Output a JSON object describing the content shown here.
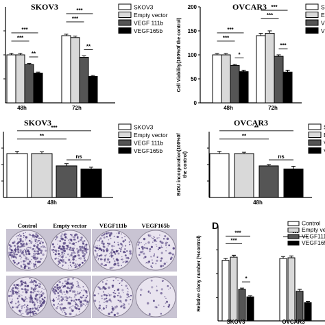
{
  "chart_data": [
    {
      "type": "bar",
      "title": "SKOV3",
      "ylabel": "",
      "categories": [
        "48h",
        "72h"
      ],
      "legend_position": "top-right",
      "ylim": [
        0,
        200
      ],
      "series": [
        {
          "name": "SKOV3",
          "color": "#ffffff",
          "values": [
            100,
            140
          ],
          "errors": [
            3,
            3
          ]
        },
        {
          "name": "Empty vector",
          "color": "#d9d9d9",
          "values": [
            100,
            136
          ],
          "errors": [
            3,
            3
          ]
        },
        {
          "name": "VEGF 111b",
          "color": "#555555",
          "values": [
            80,
            95
          ],
          "errors": [
            2,
            3
          ]
        },
        {
          "name": "VEGF165b",
          "color": "#000000",
          "values": [
            62,
            55
          ],
          "errors": [
            2,
            2
          ]
        }
      ],
      "brackets": [
        {
          "group": 0,
          "from": 0,
          "to": 3,
          "label": "***"
        },
        {
          "group": 0,
          "from": 0,
          "to": 2,
          "label": "***"
        },
        {
          "group": 0,
          "from": 2,
          "to": 3,
          "label": "**"
        },
        {
          "group": 1,
          "from": 0,
          "to": 3,
          "label": "***"
        },
        {
          "group": 1,
          "from": 0,
          "to": 2,
          "label": "***"
        },
        {
          "group": 1,
          "from": 2,
          "to": 3,
          "label": "**"
        }
      ]
    },
    {
      "type": "bar",
      "title": "OVCAR3",
      "ylabel": "Cell Viability(100%0f the control)",
      "categories": [
        "48h",
        "72h"
      ],
      "legend_position": "top-right",
      "ylim": [
        0,
        200
      ],
      "series": [
        {
          "name": "SKOV3",
          "color": "#ffffff",
          "values": [
            100,
            140
          ],
          "errors": [
            3,
            5
          ]
        },
        {
          "name": "Empty vector",
          "color": "#d9d9d9",
          "values": [
            100,
            145
          ],
          "errors": [
            3,
            5
          ]
        },
        {
          "name": "VEGF 111b",
          "color": "#555555",
          "values": [
            78,
            97
          ],
          "errors": [
            2,
            3
          ]
        },
        {
          "name": "VEGF165b",
          "color": "#000000",
          "values": [
            65,
            64
          ],
          "errors": [
            3,
            4
          ]
        }
      ],
      "legend_visible": [
        "S",
        "E",
        "V",
        "V"
      ],
      "brackets": [
        {
          "group": 0,
          "from": 0,
          "to": 3,
          "label": "***"
        },
        {
          "group": 0,
          "from": 0,
          "to": 2,
          "label": "***"
        },
        {
          "group": 0,
          "from": 2,
          "to": 3,
          "label": "*"
        },
        {
          "group": 1,
          "from": 0,
          "to": 3,
          "label": "***"
        },
        {
          "group": 1,
          "from": 0,
          "to": 2,
          "label": "***"
        },
        {
          "group": 1,
          "from": 2,
          "to": 3,
          "label": "***"
        }
      ]
    },
    {
      "type": "bar",
      "title": "SKOV3",
      "ylabel": "",
      "categories": [
        "48h"
      ],
      "legend_position": "top-right",
      "ylim": [
        0,
        1.5
      ],
      "series": [
        {
          "name": "SKOV3",
          "color": "#ffffff",
          "values": [
            1.0
          ],
          "errors": [
            0.05
          ]
        },
        {
          "name": "Empty vector",
          "color": "#d9d9d9",
          "values": [
            1.0
          ],
          "errors": [
            0.04
          ]
        },
        {
          "name": "VEGF 111b",
          "color": "#555555",
          "values": [
            0.72
          ],
          "errors": [
            0.05
          ]
        },
        {
          "name": "VEGF165b",
          "color": "#000000",
          "values": [
            0.65
          ],
          "errors": [
            0.04
          ]
        }
      ],
      "brackets": [
        {
          "group": 0,
          "from": 0,
          "to": 3,
          "label": "***"
        },
        {
          "group": 0,
          "from": 0,
          "to": 2,
          "label": "**"
        },
        {
          "group": 0,
          "from": 2,
          "to": 3,
          "label": "ns"
        }
      ]
    },
    {
      "type": "bar",
      "title": "OVCAR3",
      "ylabel": "BrDU incorporation(100%0f the control)",
      "categories": [
        "48h"
      ],
      "legend_position": "top-right",
      "ylim": [
        0,
        1.5
      ],
      "series": [
        {
          "name": "SKOV3",
          "color": "#ffffff",
          "values": [
            1.0
          ],
          "errors": [
            0.05
          ]
        },
        {
          "name": "Empty vector",
          "color": "#d9d9d9",
          "values": [
            1.0
          ],
          "errors": [
            0.03
          ]
        },
        {
          "name": "VEGF 111b",
          "color": "#555555",
          "values": [
            0.72
          ],
          "errors": [
            0.03
          ]
        },
        {
          "name": "VEGF165b",
          "color": "#000000",
          "values": [
            0.65
          ],
          "errors": [
            0.06
          ]
        }
      ],
      "legend_visible": [
        "S",
        "E",
        "V",
        "V"
      ],
      "brackets": [
        {
          "group": 0,
          "from": 0,
          "to": 3,
          "label": "**"
        },
        {
          "group": 0,
          "from": 0,
          "to": 2,
          "label": "**"
        },
        {
          "group": 0,
          "from": 2,
          "to": 3,
          "label": "ns"
        }
      ]
    },
    {
      "type": "bar",
      "title": "",
      "panel_label": "D",
      "ylabel": "Relative clony number (%control)",
      "categories": [
        "SKOV3",
        "OVCAR3"
      ],
      "legend_position": "top-right",
      "ylim": [
        0,
        150
      ],
      "series": [
        {
          "name": "Control",
          "color": "#ffffff",
          "values": [
            96,
            99
          ],
          "errors": [
            3,
            3
          ]
        },
        {
          "name": "Empty vector",
          "color": "#d9d9d9",
          "values": [
            101,
            100
          ],
          "errors": [
            3,
            3
          ]
        },
        {
          "name": "VEGF111b",
          "color": "#555555",
          "values": [
            50,
            47
          ],
          "errors": [
            2,
            3
          ]
        },
        {
          "name": "VEGF165b",
          "color": "#000000",
          "values": [
            38,
            29
          ],
          "errors": [
            2,
            2
          ]
        }
      ],
      "legend_visible": [
        "Control",
        "Empty vecto",
        "VEGF111",
        "VEGF165"
      ],
      "brackets": [
        {
          "group": 0,
          "from": 0,
          "to": 3,
          "label": "***"
        },
        {
          "group": 0,
          "from": 0,
          "to": 2,
          "label": "***"
        },
        {
          "group": 0,
          "from": 2,
          "to": 3,
          "label": "*"
        },
        {
          "group": 1,
          "from": 0,
          "to": 3,
          "label": "***"
        }
      ]
    }
  ],
  "plates": {
    "columns": [
      "Control",
      "Empty vector",
      "VEGF111b",
      "VEGF165b"
    ],
    "row_density": [
      [
        0.95,
        0.85,
        0.6,
        0.35
      ],
      [
        0.8,
        0.7,
        0.4,
        0.12
      ]
    ]
  },
  "colors": {
    "plate_bg": "#e9e4ef",
    "stain": "#4b3a7a",
    "frame": "#ffffff"
  }
}
